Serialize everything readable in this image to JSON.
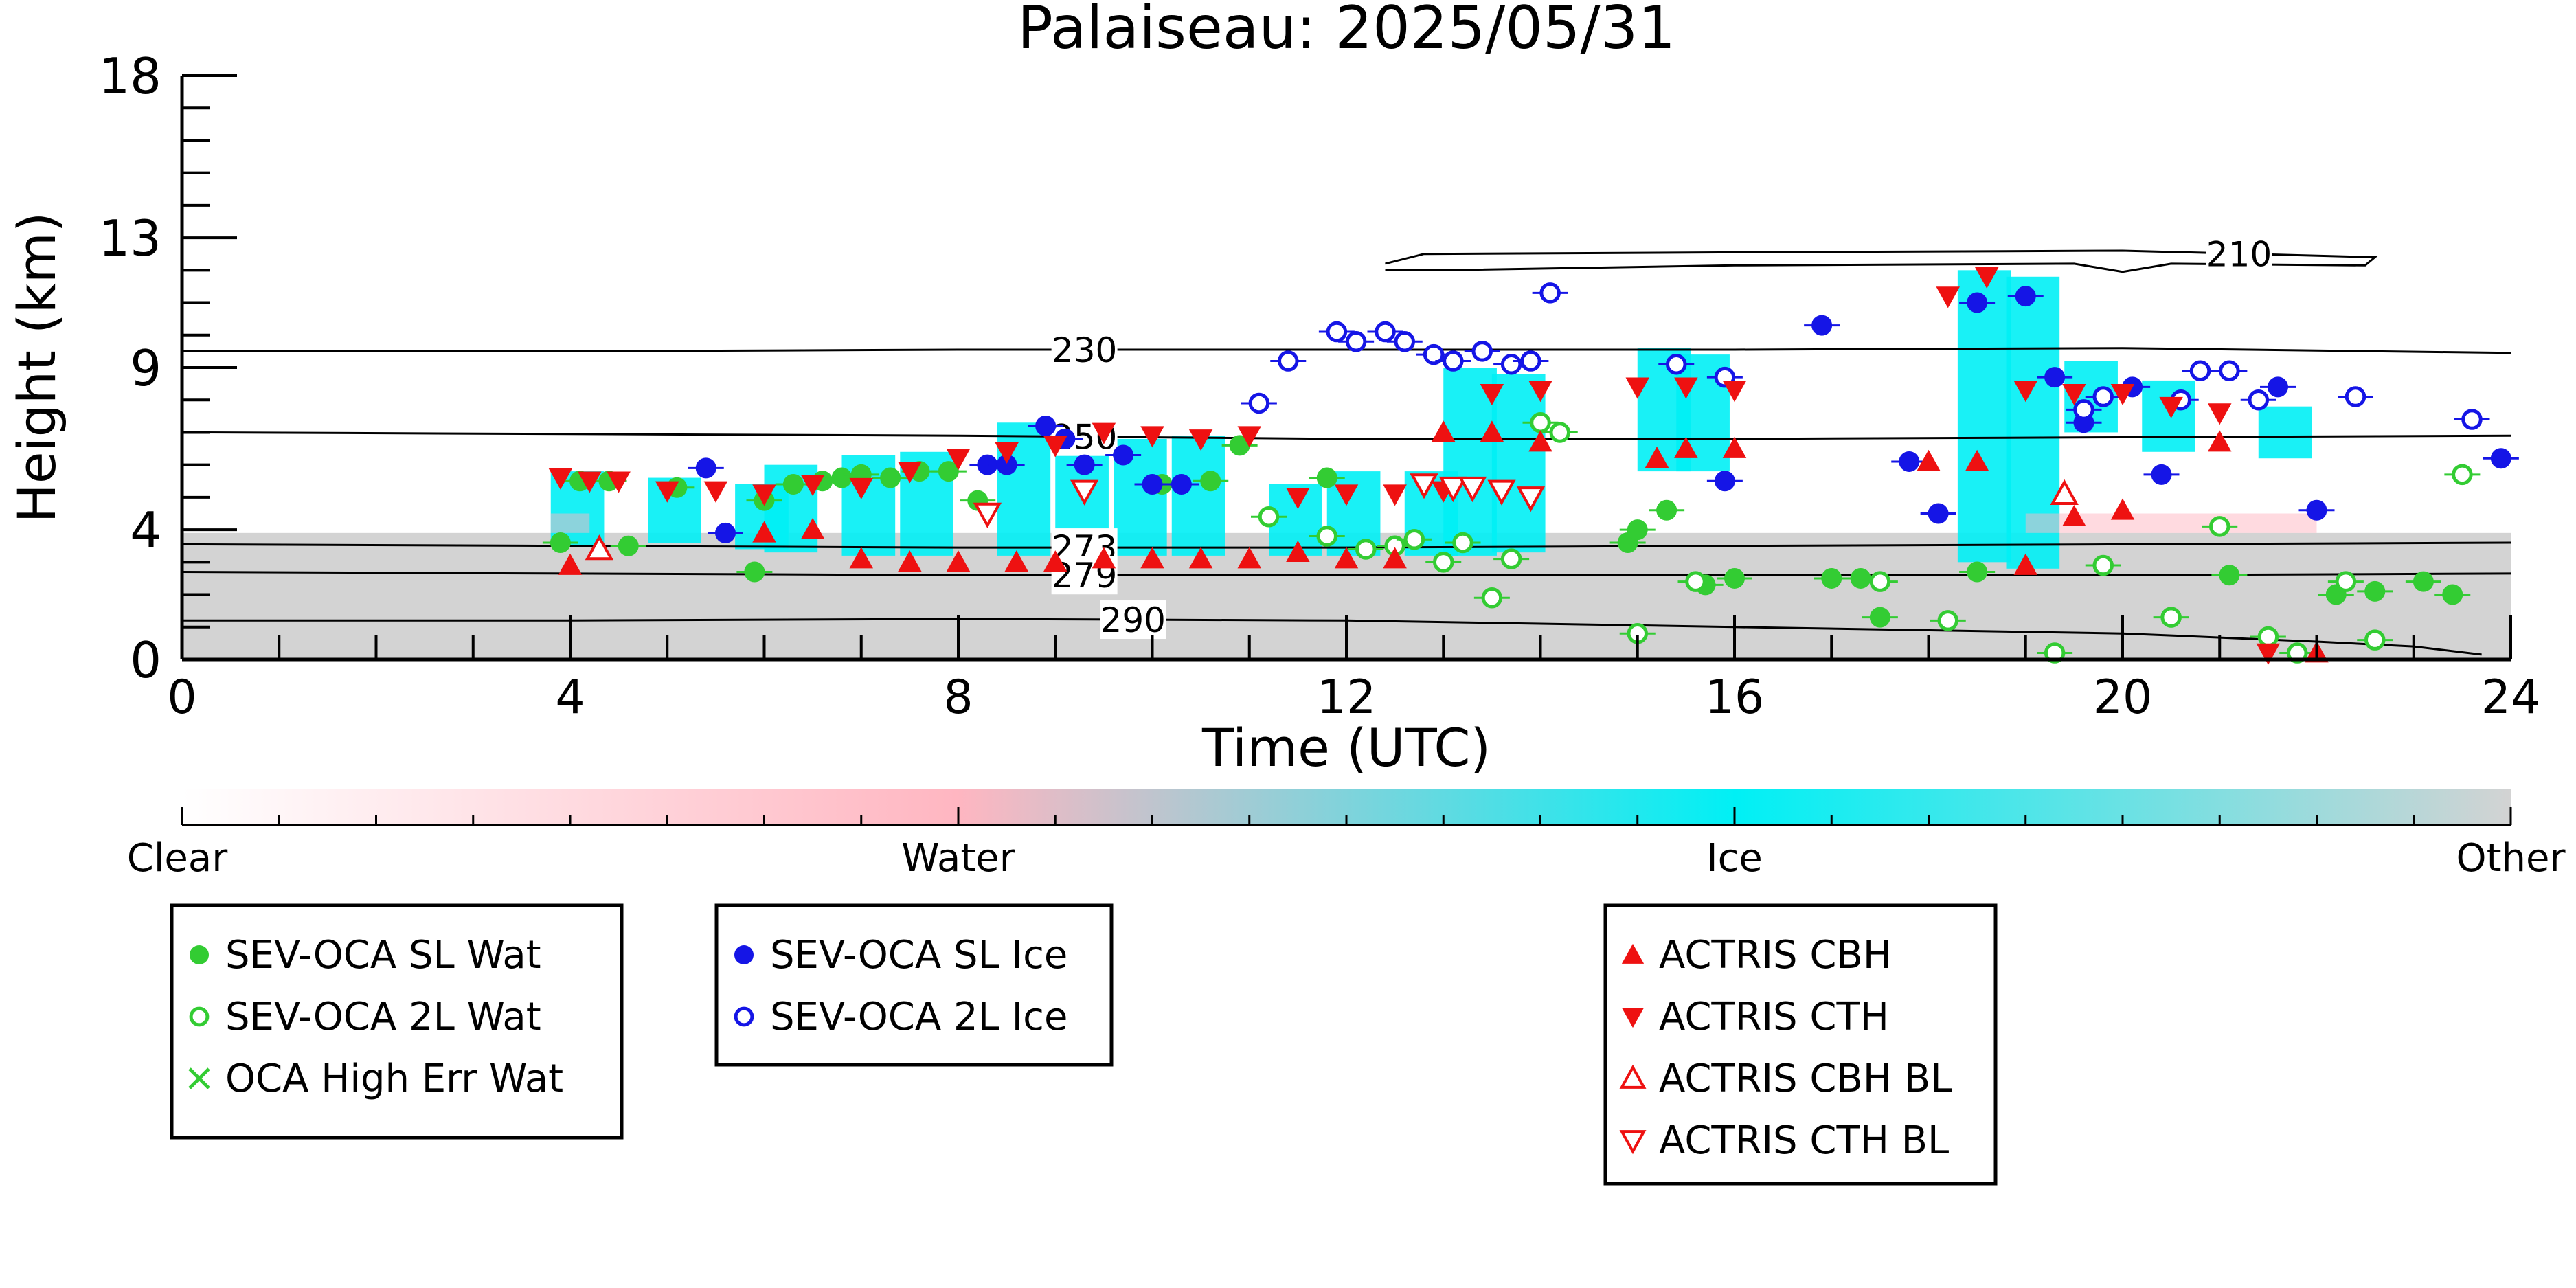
{
  "chart_data": {
    "type": "scatter",
    "title": "Palaiseau: 2025/05/31",
    "xlabel": "Time (UTC)",
    "ylabel": "Height (km)",
    "xlim": [
      0,
      24
    ],
    "ylim": [
      0,
      18
    ],
    "x_ticks": [
      0,
      4,
      8,
      12,
      16,
      20,
      24
    ],
    "y_ticks": [
      0,
      4,
      9,
      13,
      18
    ],
    "x_tick_labels": [
      "0",
      "4",
      "8",
      "12",
      "16",
      "20",
      "24"
    ],
    "y_tick_labels": [
      "0",
      "4",
      "9",
      "13",
      "18"
    ],
    "grid": false,
    "legend_placement": "below",
    "colorbar": {
      "labels": [
        "Clear",
        "Water",
        "Ice",
        "Other"
      ],
      "colors": [
        "#ffffff",
        "#ffb6c1",
        "#00f0f5",
        "#d3d3d3"
      ]
    },
    "contours": [
      {
        "label": "210",
        "points": [
          [
            12.4,
            12.2
          ],
          [
            12.8,
            12.5
          ],
          [
            16,
            12.55
          ],
          [
            20,
            12.6
          ],
          [
            22.6,
            12.4
          ],
          [
            22.5,
            12.15
          ],
          [
            20.5,
            12.2
          ],
          [
            20,
            11.95
          ],
          [
            19.5,
            12.2
          ],
          [
            16,
            12.15
          ],
          [
            13,
            12.0
          ],
          [
            12.4,
            12.0
          ]
        ]
      },
      {
        "label": "230",
        "points": [
          [
            0,
            9.5
          ],
          [
            4,
            9.5
          ],
          [
            8,
            9.55
          ],
          [
            12,
            9.55
          ],
          [
            16,
            9.55
          ],
          [
            20,
            9.6
          ],
          [
            24,
            9.45
          ]
        ]
      },
      {
        "label": "250",
        "points": [
          [
            0,
            7.0
          ],
          [
            4,
            6.95
          ],
          [
            8,
            6.9
          ],
          [
            12,
            6.8
          ],
          [
            16,
            6.8
          ],
          [
            20,
            6.85
          ],
          [
            24,
            6.9
          ]
        ]
      },
      {
        "label": "273",
        "points": [
          [
            0,
            3.55
          ],
          [
            4,
            3.5
          ],
          [
            8,
            3.45
          ],
          [
            12,
            3.45
          ],
          [
            16,
            3.5
          ],
          [
            20,
            3.55
          ],
          [
            24,
            3.6
          ]
        ]
      },
      {
        "label": "279",
        "points": [
          [
            0,
            2.7
          ],
          [
            4,
            2.65
          ],
          [
            8,
            2.6
          ],
          [
            12,
            2.6
          ],
          [
            16,
            2.6
          ],
          [
            20,
            2.6
          ],
          [
            24,
            2.65
          ]
        ]
      },
      {
        "label": "290",
        "points": [
          [
            0,
            1.2
          ],
          [
            4,
            1.2
          ],
          [
            8,
            1.25
          ],
          [
            12,
            1.2
          ],
          [
            16,
            1.0
          ],
          [
            20,
            0.8
          ],
          [
            22,
            0.55
          ],
          [
            23,
            0.4
          ],
          [
            23.7,
            0.15
          ]
        ]
      }
    ],
    "series": [
      {
        "name": "SEV-OCA SL Wat",
        "marker": "filled-circle",
        "color": "#33cc33",
        "x": [
          3.9,
          4.1,
          4.4,
          4.6,
          5.1,
          5.9,
          6.0,
          6.3,
          6.6,
          6.8,
          7.0,
          7.3,
          7.6,
          7.9,
          8.2,
          10.1,
          10.6,
          10.9,
          11.8,
          14.9,
          15.0,
          15.3,
          15.7,
          16.0,
          17.0,
          17.3,
          17.5,
          18.5,
          21.1,
          22.2,
          22.6,
          23.1,
          23.4
        ],
        "y": [
          3.6,
          5.5,
          5.5,
          3.5,
          5.3,
          2.7,
          4.9,
          5.4,
          5.5,
          5.6,
          5.7,
          5.6,
          5.8,
          5.8,
          4.9,
          5.4,
          5.5,
          6.6,
          5.6,
          3.6,
          4.0,
          4.6,
          2.3,
          2.5,
          2.5,
          2.5,
          1.3,
          2.7,
          2.6,
          2.0,
          2.1,
          2.4,
          2.0
        ]
      },
      {
        "name": "SEV-OCA 2L Wat",
        "marker": "open-circle",
        "color": "#33cc33",
        "x": [
          11.2,
          11.8,
          12.2,
          12.5,
          12.7,
          13.0,
          13.2,
          13.5,
          13.7,
          14.0,
          14.2,
          15.0,
          15.6,
          17.5,
          18.2,
          19.3,
          19.8,
          20.5,
          21.0,
          21.5,
          21.8,
          22.3,
          22.6,
          23.5
        ],
        "y": [
          4.4,
          3.8,
          3.4,
          3.5,
          3.7,
          3.0,
          3.6,
          1.9,
          3.1,
          7.3,
          7.0,
          0.8,
          2.4,
          2.4,
          1.2,
          0.2,
          2.9,
          1.3,
          4.1,
          0.7,
          0.2,
          2.4,
          0.6,
          5.7
        ]
      },
      {
        "name": "OCA High Err Wat",
        "marker": "x",
        "color": "#33cc33",
        "x": [],
        "y": []
      },
      {
        "name": "SEV-OCA SL Ice",
        "marker": "filled-circle",
        "color": "#1515e6",
        "x": [
          5.4,
          5.6,
          8.3,
          8.5,
          8.9,
          9.1,
          9.3,
          9.7,
          10.0,
          10.3,
          15.9,
          16.9,
          17.8,
          18.1,
          18.5,
          19.0,
          19.3,
          19.6,
          20.1,
          20.4,
          21.6,
          22.0,
          23.9
        ],
        "y": [
          5.9,
          3.9,
          6.0,
          6.0,
          7.2,
          6.8,
          6.0,
          6.3,
          5.4,
          5.4,
          5.5,
          10.3,
          6.1,
          4.5,
          11.0,
          11.2,
          8.7,
          7.3,
          8.4,
          5.7,
          8.4,
          4.6,
          6.2
        ]
      },
      {
        "name": "SEV-OCA 2L Ice",
        "marker": "open-circle",
        "color": "#1515e6",
        "x": [
          11.1,
          11.4,
          11.9,
          12.1,
          12.4,
          12.6,
          12.9,
          13.1,
          13.4,
          13.7,
          13.9,
          14.1,
          15.4,
          15.9,
          19.6,
          19.8,
          20.6,
          20.8,
          21.1,
          21.4,
          22.4,
          23.6
        ],
        "y": [
          7.9,
          9.2,
          10.1,
          9.8,
          10.1,
          9.8,
          9.4,
          9.2,
          9.5,
          9.1,
          9.2,
          11.3,
          9.1,
          8.7,
          7.7,
          8.1,
          8.0,
          8.9,
          8.9,
          8.0,
          8.1,
          7.4
        ]
      },
      {
        "name": "ACTRIS CBH",
        "marker": "filled-triangle-up",
        "color": "#ee1111",
        "x": [
          4.0,
          6.0,
          6.5,
          7.0,
          7.5,
          8.0,
          8.6,
          9.0,
          9.5,
          10.0,
          10.5,
          11.0,
          11.5,
          12.0,
          12.5,
          13.0,
          13.5,
          14.0,
          15.2,
          15.5,
          16.0,
          18.0,
          18.5,
          19.0,
          19.5,
          20.0,
          21.0,
          22.0
        ],
        "y": [
          2.9,
          3.9,
          4.0,
          3.1,
          3.0,
          3.0,
          3.0,
          3.0,
          3.1,
          3.1,
          3.1,
          3.1,
          3.3,
          3.1,
          3.1,
          7.0,
          7.0,
          6.7,
          6.2,
          6.5,
          6.5,
          6.1,
          6.1,
          2.9,
          4.4,
          4.6,
          6.7,
          0.2
        ]
      },
      {
        "name": "ACTRIS CTH",
        "marker": "filled-triangle-down",
        "color": "#ee1111",
        "x": [
          3.9,
          4.2,
          4.5,
          5.0,
          5.5,
          6.0,
          6.5,
          7.0,
          7.5,
          8.0,
          8.5,
          9.0,
          9.5,
          10.0,
          10.5,
          11.0,
          11.5,
          12.0,
          12.5,
          13.0,
          13.5,
          14.0,
          15.0,
          15.5,
          16.0,
          18.2,
          18.6,
          19.0,
          19.5,
          20.0,
          20.5,
          21.0,
          21.5
        ],
        "y": [
          5.6,
          5.5,
          5.5,
          5.2,
          5.2,
          5.1,
          5.4,
          5.3,
          5.8,
          6.2,
          6.4,
          6.6,
          7.0,
          6.9,
          6.8,
          6.9,
          5.0,
          5.1,
          5.1,
          5.2,
          8.2,
          8.3,
          8.4,
          8.4,
          8.3,
          11.2,
          11.8,
          8.3,
          8.2,
          8.2,
          7.8,
          7.6,
          0.2
        ]
      },
      {
        "name": "ACTRIS CBH BL",
        "marker": "open-triangle-up",
        "color": "#ee1111",
        "x": [
          4.3,
          19.4
        ],
        "y": [
          3.4,
          5.1
        ]
      },
      {
        "name": "ACTRIS CTH BL",
        "marker": "open-triangle-down",
        "color": "#ee1111",
        "x": [
          8.3,
          9.3,
          12.8,
          13.1,
          13.3,
          13.6,
          13.9
        ],
        "y": [
          4.5,
          5.2,
          5.4,
          5.3,
          5.3,
          5.2,
          5.0
        ]
      }
    ]
  },
  "legends": [
    {
      "items": [
        {
          "label": "SEV-OCA SL Wat",
          "marker": "filled-circle",
          "color": "#33cc33"
        },
        {
          "label": "SEV-OCA 2L Wat",
          "marker": "open-circle",
          "color": "#33cc33"
        },
        {
          "label": "OCA High Err Wat",
          "marker": "x",
          "color": "#33cc33"
        }
      ]
    },
    {
      "items": [
        {
          "label": "SEV-OCA SL Ice",
          "marker": "filled-circle",
          "color": "#1515e6"
        },
        {
          "label": "SEV-OCA 2L Ice",
          "marker": "open-circle",
          "color": "#1515e6"
        }
      ]
    },
    {
      "items": [
        {
          "label": "ACTRIS CBH",
          "marker": "filled-triangle-up",
          "color": "#ee1111"
        },
        {
          "label": "ACTRIS CTH",
          "marker": "filled-triangle-down",
          "color": "#ee1111"
        },
        {
          "label": "ACTRIS CBH BL",
          "marker": "open-triangle-up",
          "color": "#ee1111"
        },
        {
          "label": "ACTRIS CTH BL",
          "marker": "open-triangle-down",
          "color": "#ee1111"
        }
      ]
    }
  ]
}
